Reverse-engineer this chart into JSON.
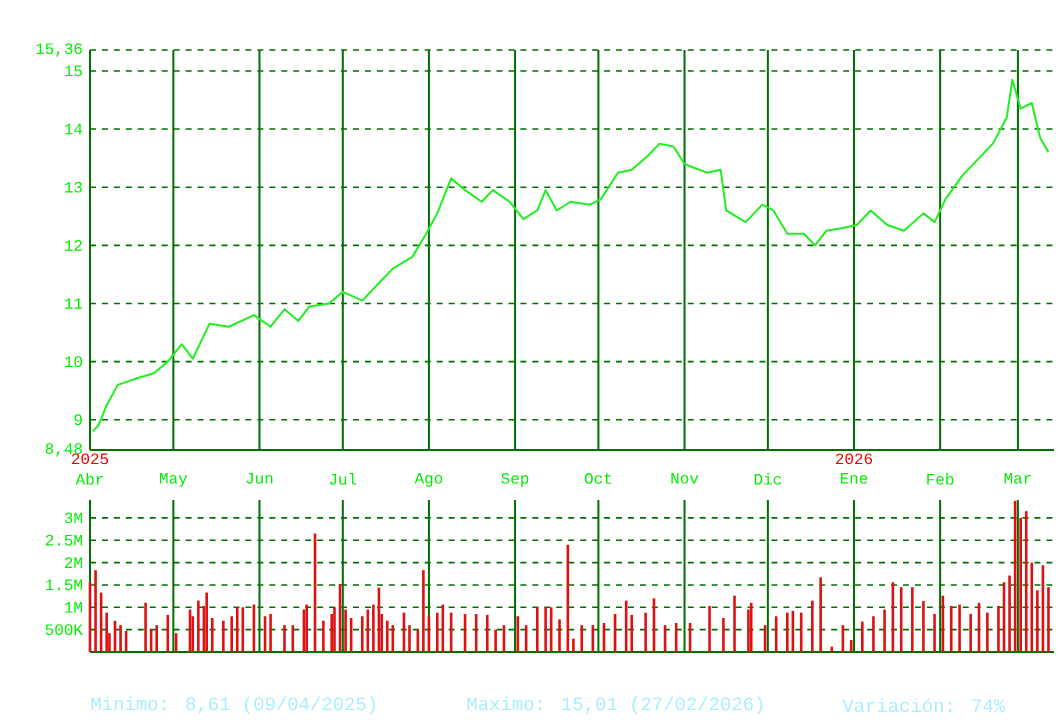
{
  "chart_data": [
    {
      "type": "line",
      "color": "#22ee22",
      "x": [
        "2025-04-02",
        "2025-04-04",
        "2025-04-07",
        "2025-04-11",
        "2025-04-17",
        "2025-04-24",
        "2025-04-29",
        "2025-05-04",
        "2025-05-08",
        "2025-05-14",
        "2025-05-21",
        "2025-05-30",
        "2025-06-05",
        "2025-06-10",
        "2025-06-15",
        "2025-06-19",
        "2025-06-26",
        "2025-07-01",
        "2025-07-08",
        "2025-07-13",
        "2025-07-19",
        "2025-07-26",
        "2025-07-31",
        "2025-08-04",
        "2025-08-09",
        "2025-08-14",
        "2025-08-20",
        "2025-08-24",
        "2025-08-30",
        "2025-09-04",
        "2025-09-09",
        "2025-09-12",
        "2025-09-16",
        "2025-09-21",
        "2025-09-28",
        "2025-10-02",
        "2025-10-08",
        "2025-10-13",
        "2025-10-19",
        "2025-10-23",
        "2025-10-28",
        "2025-11-01",
        "2025-11-09",
        "2025-11-14",
        "2025-11-16",
        "2025-11-23",
        "2025-11-29",
        "2025-12-03",
        "2025-12-08",
        "2025-12-14",
        "2025-12-18",
        "2025-12-22",
        "2025-12-28",
        "2026-01-02",
        "2026-01-07",
        "2026-01-13",
        "2026-01-19",
        "2026-01-26",
        "2026-01-30",
        "2026-02-03",
        "2026-02-09",
        "2026-02-15",
        "2026-02-20",
        "2026-02-25",
        "2026-02-27",
        "2026-03-02",
        "2026-03-06",
        "2026-03-09",
        "2026-03-12"
      ],
      "values": [
        8.8,
        8.9,
        9.25,
        9.6,
        9.7,
        9.8,
        10.0,
        10.3,
        10.05,
        10.65,
        10.6,
        10.8,
        10.6,
        10.9,
        10.7,
        10.95,
        11.0,
        11.2,
        11.05,
        11.3,
        11.6,
        11.8,
        12.2,
        12.55,
        13.15,
        12.95,
        12.75,
        12.95,
        12.75,
        12.45,
        12.6,
        12.95,
        12.6,
        12.75,
        12.7,
        12.8,
        13.25,
        13.3,
        13.55,
        13.75,
        13.7,
        13.4,
        13.25,
        13.3,
        12.6,
        12.4,
        12.7,
        12.6,
        12.2,
        12.2,
        12.0,
        12.25,
        12.3,
        12.35,
        12.6,
        12.35,
        12.25,
        12.55,
        12.4,
        12.8,
        13.2,
        13.5,
        13.75,
        14.2,
        14.85,
        14.35,
        14.45,
        13.85,
        13.6
      ],
      "xlim": [
        "2025-04-01",
        "2026-03-14"
      ],
      "xticks": [
        {
          "value": "2025-04-01",
          "label": "Abr"
        },
        {
          "value": "2025-05-01",
          "label": "May"
        },
        {
          "value": "2025-06-01",
          "label": "Jun"
        },
        {
          "value": "2025-07-01",
          "label": "Jul"
        },
        {
          "value": "2025-08-01",
          "label": "Ago"
        },
        {
          "value": "2025-09-01",
          "label": "Sep"
        },
        {
          "value": "2025-10-01",
          "label": "Oct"
        },
        {
          "value": "2025-11-01",
          "label": "Nov"
        },
        {
          "value": "2025-12-01",
          "label": "Dic"
        },
        {
          "value": "2026-01-01",
          "label": "Ene"
        },
        {
          "value": "2026-02-01",
          "label": "Feb"
        },
        {
          "value": "2026-03-01",
          "label": "Mar"
        }
      ],
      "ylim": [
        8.48,
        15.36
      ],
      "yticks": [
        {
          "value": 8.48,
          "label": "8,48"
        },
        9,
        10,
        11,
        12,
        13,
        14,
        15,
        {
          "value": 15.36,
          "label": "15,36"
        }
      ],
      "grid": true,
      "annotations": [
        "2025",
        "2026"
      ]
    },
    {
      "type": "bar",
      "color": "#dd1111",
      "x": [
        "2025-04-01",
        "2025-04-03",
        "2025-04-05",
        "2025-04-07",
        "2025-04-08",
        "2025-04-10",
        "2025-04-12",
        "2025-04-14",
        "2025-04-21",
        "2025-04-23",
        "2025-04-25",
        "2025-04-29",
        "2025-05-02",
        "2025-05-07",
        "2025-05-08",
        "2025-05-10",
        "2025-05-12",
        "2025-05-13",
        "2025-05-15",
        "2025-05-19",
        "2025-05-22",
        "2025-05-24",
        "2025-05-26",
        "2025-05-30",
        "2025-06-03",
        "2025-06-05",
        "2025-06-10",
        "2025-06-13",
        "2025-06-17",
        "2025-06-18",
        "2025-06-21",
        "2025-06-24",
        "2025-06-27",
        "2025-06-28",
        "2025-06-30",
        "2025-07-02",
        "2025-07-04",
        "2025-07-08",
        "2025-07-10",
        "2025-07-12",
        "2025-07-14",
        "2025-07-15",
        "2025-07-17",
        "2025-07-19",
        "2025-07-23",
        "2025-07-25",
        "2025-07-28",
        "2025-07-30",
        "2025-08-01",
        "2025-08-04",
        "2025-08-06",
        "2025-08-09",
        "2025-08-14",
        "2025-08-18",
        "2025-08-22",
        "2025-08-25",
        "2025-08-28",
        "2025-09-02",
        "2025-09-05",
        "2025-09-09",
        "2025-09-12",
        "2025-09-14",
        "2025-09-17",
        "2025-09-20",
        "2025-09-22",
        "2025-09-25",
        "2025-09-29",
        "2025-10-03",
        "2025-10-07",
        "2025-10-11",
        "2025-10-13",
        "2025-10-18",
        "2025-10-21",
        "2025-10-25",
        "2025-10-29",
        "2025-11-03",
        "2025-11-10",
        "2025-11-15",
        "2025-11-19",
        "2025-11-24",
        "2025-11-25",
        "2025-11-30",
        "2025-12-04",
        "2025-12-08",
        "2025-12-10",
        "2025-12-13",
        "2025-12-17",
        "2025-12-20",
        "2025-12-24",
        "2025-12-28",
        "2025-12-31",
        "2026-01-04",
        "2026-01-08",
        "2026-01-12",
        "2026-01-15",
        "2026-01-18",
        "2026-01-22",
        "2026-01-26",
        "2026-01-30",
        "2026-02-02",
        "2026-02-05",
        "2026-02-08",
        "2026-02-12",
        "2026-02-15",
        "2026-02-18",
        "2026-02-22",
        "2026-02-24",
        "2026-02-26",
        "2026-02-28",
        "2026-03-02",
        "2026-03-04",
        "2026-03-06",
        "2026-03-08",
        "2026-03-10",
        "2026-03-12"
      ],
      "values": [
        1560000,
        1830000,
        1330000,
        880000,
        420000,
        700000,
        600000,
        470000,
        1100000,
        500000,
        600000,
        830000,
        420000,
        950000,
        800000,
        1150000,
        1030000,
        1330000,
        760000,
        700000,
        800000,
        1000000,
        1000000,
        1060000,
        800000,
        850000,
        600000,
        600000,
        950000,
        1060000,
        2650000,
        700000,
        850000,
        1000000,
        1520000,
        950000,
        760000,
        800000,
        950000,
        1060000,
        1440000,
        850000,
        700000,
        600000,
        880000,
        600000,
        500000,
        1830000,
        800000,
        880000,
        1060000,
        880000,
        850000,
        850000,
        830000,
        500000,
        600000,
        800000,
        600000,
        1000000,
        1000000,
        1000000,
        730000,
        2400000,
        300000,
        600000,
        600000,
        650000,
        850000,
        1150000,
        830000,
        880000,
        1200000,
        600000,
        650000,
        650000,
        1030000,
        760000,
        1260000,
        950000,
        1100000,
        600000,
        800000,
        880000,
        920000,
        880000,
        1150000,
        1670000,
        120000,
        600000,
        270000,
        680000,
        800000,
        950000,
        1560000,
        1450000,
        1450000,
        1140000,
        850000,
        1260000,
        1030000,
        1060000,
        850000,
        1100000,
        880000,
        1030000,
        1560000,
        1710000,
        3380000,
        3000000,
        3150000,
        2000000,
        1380000,
        1940000,
        1450000
      ],
      "xlim": [
        "2025-04-01",
        "2026-03-14"
      ],
      "xticks": [
        {
          "value": "2025-04-01",
          "label": null
        },
        {
          "value": "2025-05-01",
          "label": null
        },
        {
          "value": "2025-06-01",
          "label": null
        },
        {
          "value": "2025-07-01",
          "label": null
        },
        {
          "value": "2025-08-01",
          "label": null
        },
        {
          "value": "2025-09-01",
          "label": null
        },
        {
          "value": "2025-10-01",
          "label": null
        },
        {
          "value": "2025-11-01",
          "label": null
        },
        {
          "value": "2025-12-01",
          "label": null
        },
        {
          "value": "2026-01-01",
          "label": null
        },
        {
          "value": "2026-02-01",
          "label": null
        },
        {
          "value": "2026-03-01",
          "label": null
        }
      ],
      "ylim": [
        0,
        3400000
      ],
      "yticks": [
        {
          "value": 500000,
          "label": "500K"
        },
        {
          "value": 1000000,
          "label": "1M"
        },
        {
          "value": 1500000,
          "label": "1.5M"
        },
        {
          "value": 2000000,
          "label": "2M"
        },
        {
          "value": 2500000,
          "label": "2.5M"
        },
        {
          "value": 3000000,
          "label": "3M"
        }
      ],
      "grid": true,
      "tick_labels": "y",
      "annotations": [
        "Minimo: 8,61 (09/04/2025)",
        "Maximo: 15,01 (27/02/2026)",
        "Variación: 74%"
      ]
    }
  ]
}
